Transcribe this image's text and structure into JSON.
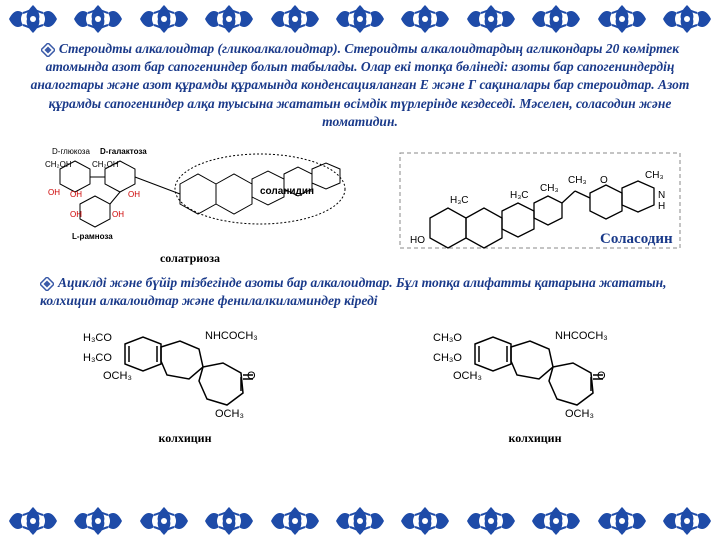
{
  "border": {
    "pattern_count": 11,
    "primary_color": "#1e4ba8",
    "secondary_color": "#ffffff"
  },
  "paragraph1": {
    "text": "Стероидты алкалоидтар (гликоалкалоидтар). Стероидты алкалоидтардың агликондары 20 көміртек атомында азот бар сапогениндер болып табылады. Олар екі топқа бөлінеді: азоты бар сапогениндердің аналогтары және азот құрамды құрамында конденсацияланған Е және Г сақиналары бар стероидтар. Азот құрамды сапогениндер алқа туысына жататын өсімдік түрлерінде кездеседі. Мәселен, соласодин және томатидин.",
    "color": "#1a3a8a",
    "fontsize": 13.5
  },
  "paragraph2": {
    "text": "Ациклді және бүйір тізбегінде азоты бар алкалоидтар. Бұл топқа алифатты қатарына жататын, колхицин алкалоидтар және фенилалкиламиндер кіреді",
    "color": "#1a3a8a",
    "fontsize": 13.5
  },
  "structures": {
    "row1": [
      {
        "label": "солатриоза",
        "caption_inside": "соланидин",
        "sugars": [
          "D-глюкоза",
          "D-галактоза",
          "L-рамноза"
        ]
      },
      {
        "label": "Соласодин"
      }
    ],
    "row2": [
      {
        "label": "колхицин"
      },
      {
        "label": "колхицин"
      }
    ]
  }
}
